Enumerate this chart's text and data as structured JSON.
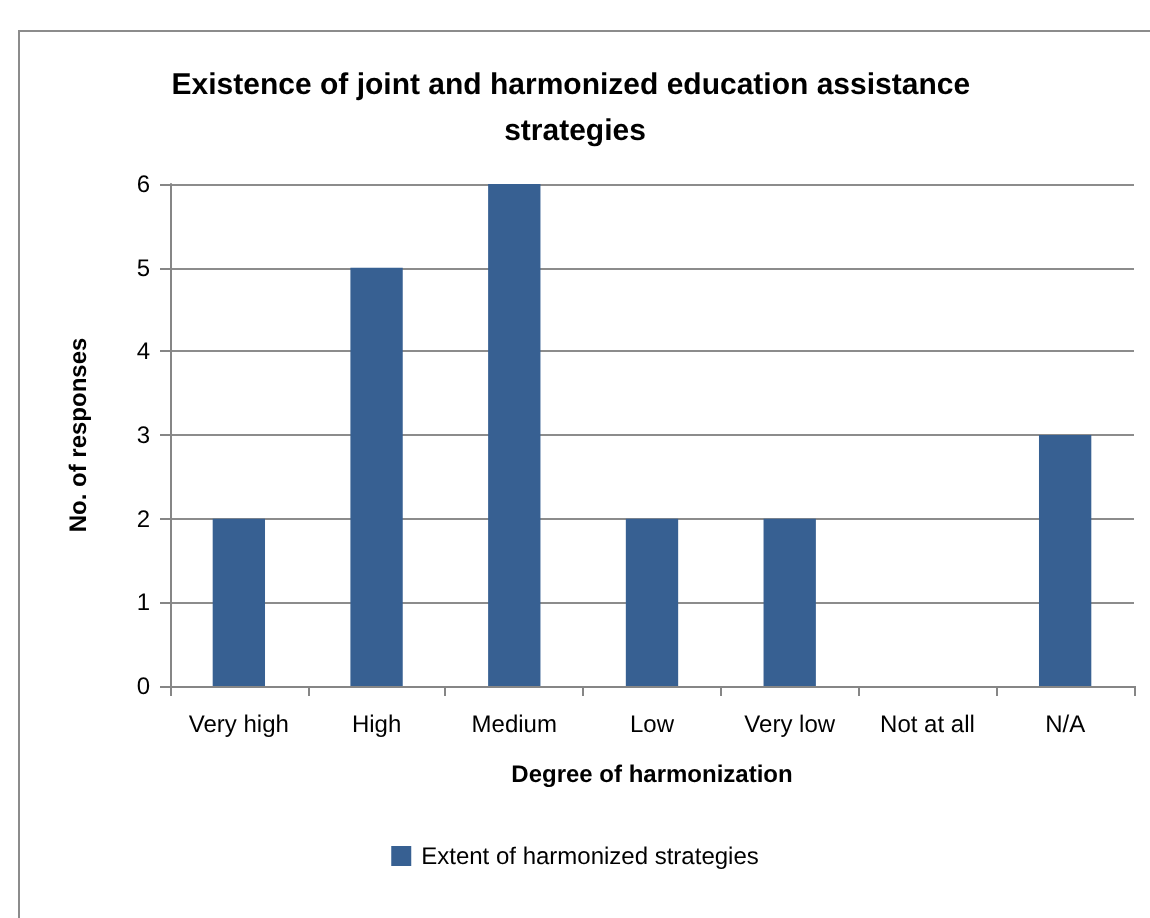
{
  "chart_data": {
    "type": "bar",
    "title": "Existence of joint and harmonized education assistance strategies",
    "xlabel": "Degree of harmonization",
    "ylabel": "No. of responses",
    "categories": [
      "Very high",
      "High",
      "Medium",
      "Low",
      "Very low",
      "Not at all",
      "N/A"
    ],
    "series": [
      {
        "name": "Extent of harmonized strategies",
        "color": "#376092",
        "values": [
          2,
          5,
          6,
          2,
          2,
          0,
          3
        ]
      }
    ],
    "ylim": [
      0,
      6
    ],
    "yticks": [
      0,
      1,
      2,
      3,
      4,
      5,
      6
    ],
    "grid": "y",
    "legend": "bottom"
  }
}
